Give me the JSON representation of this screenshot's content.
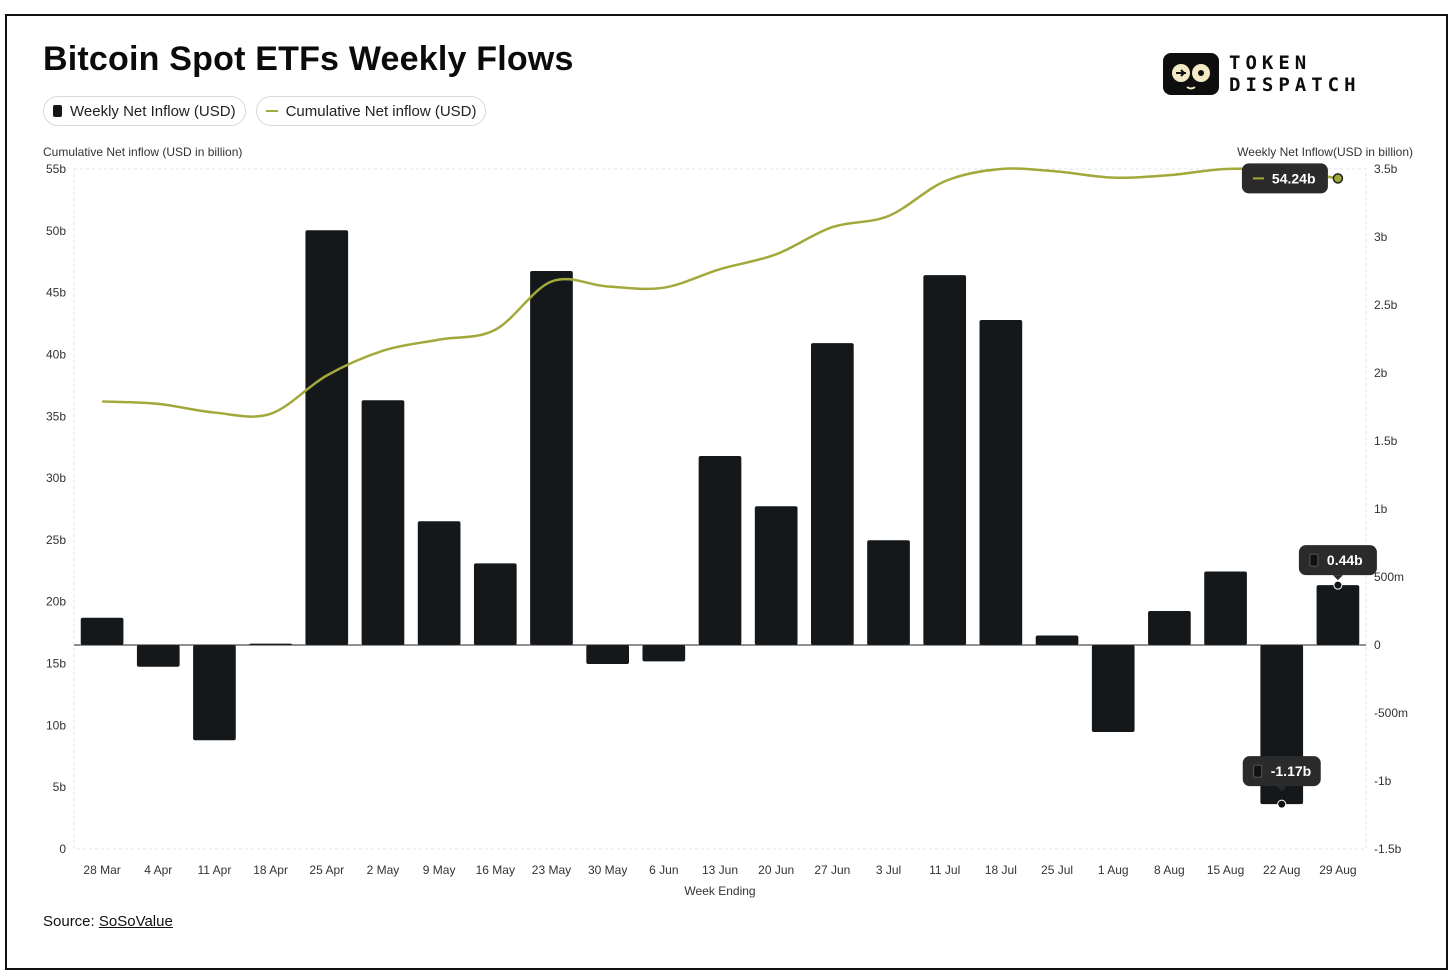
{
  "title": "Bitcoin Spot ETFs Weekly Flows",
  "legend": {
    "bar_label": "Weekly Net Inflow (USD)",
    "line_label": "Cumulative Net inflow (USD)"
  },
  "logo": {
    "line1": "TOKEN",
    "line2": "DISPATCH"
  },
  "source": {
    "prefix": "Source: ",
    "link": "SoSoValue"
  },
  "colors": {
    "bar": "#15181b",
    "line": "#a3a83a",
    "tooltip": "#2b2b2b"
  },
  "chart_data": {
    "type": "bar+line",
    "xlabel": "Week Ending",
    "left_axis_label": "Cumulative Net inflow (USD in billion)",
    "right_axis_label": "Weekly Net Inflow(USD in billion)",
    "categories": [
      "28 Mar",
      "4 Apr",
      "11 Apr",
      "18 Apr",
      "25 Apr",
      "2 May",
      "9 May",
      "16 May",
      "23 May",
      "30 May",
      "6 Jun",
      "13 Jun",
      "20 Jun",
      "27 Jun",
      "3 Jul",
      "11 Jul",
      "18 Jul",
      "25 Jul",
      "1 Aug",
      "8 Aug",
      "15 Aug",
      "22 Aug",
      "29 Aug"
    ],
    "left_ticks": [
      {
        "value": 0,
        "label": "0"
      },
      {
        "value": 5,
        "label": "5b"
      },
      {
        "value": 10,
        "label": "10b"
      },
      {
        "value": 15,
        "label": "15b"
      },
      {
        "value": 20,
        "label": "20b"
      },
      {
        "value": 25,
        "label": "25b"
      },
      {
        "value": 30,
        "label": "30b"
      },
      {
        "value": 35,
        "label": "35b"
      },
      {
        "value": 40,
        "label": "40b"
      },
      {
        "value": 45,
        "label": "45b"
      },
      {
        "value": 50,
        "label": "50b"
      },
      {
        "value": 55,
        "label": "55b"
      }
    ],
    "right_ticks": [
      {
        "value": -1.5,
        "label": "-1.5b"
      },
      {
        "value": -1,
        "label": "-1b"
      },
      {
        "value": -0.5,
        "label": "-500m"
      },
      {
        "value": 0,
        "label": "0"
      },
      {
        "value": 0.5,
        "label": "500m"
      },
      {
        "value": 1,
        "label": "1b"
      },
      {
        "value": 1.5,
        "label": "1.5b"
      },
      {
        "value": 2,
        "label": "2b"
      },
      {
        "value": 2.5,
        "label": "2.5b"
      },
      {
        "value": 3,
        "label": "3b"
      },
      {
        "value": 3.5,
        "label": "3.5b"
      }
    ],
    "left_range": [
      0,
      55
    ],
    "right_range": [
      -1.5,
      3.5
    ],
    "series": [
      {
        "name": "Weekly Net Inflow (USD)",
        "axis": "right",
        "kind": "bar",
        "values": [
          0.2,
          -0.16,
          -0.7,
          0.01,
          3.05,
          1.8,
          0.91,
          0.6,
          2.75,
          -0.14,
          -0.12,
          1.39,
          1.02,
          2.22,
          0.77,
          2.72,
          2.39,
          0.07,
          -0.64,
          0.25,
          0.54,
          -1.17,
          0.44
        ]
      },
      {
        "name": "Cumulative Net inflow (USD)",
        "axis": "left",
        "kind": "line",
        "values": [
          36.2,
          36.0,
          35.3,
          35.2,
          38.3,
          40.3,
          41.2,
          42.0,
          45.9,
          45.5,
          45.4,
          46.9,
          48.1,
          50.3,
          51.2,
          54.0,
          55.0,
          54.8,
          54.3,
          54.5,
          55.0,
          54.9,
          54.24
        ]
      }
    ],
    "annotations": [
      {
        "series": "Cumulative Net inflow (USD)",
        "category": "29 Aug",
        "label": "54.24b"
      },
      {
        "series": "Weekly Net Inflow (USD)",
        "category": "29 Aug",
        "label": "0.44b"
      },
      {
        "series": "Weekly Net Inflow (USD)",
        "category": "22 Aug",
        "label": "-1.17b"
      }
    ]
  }
}
